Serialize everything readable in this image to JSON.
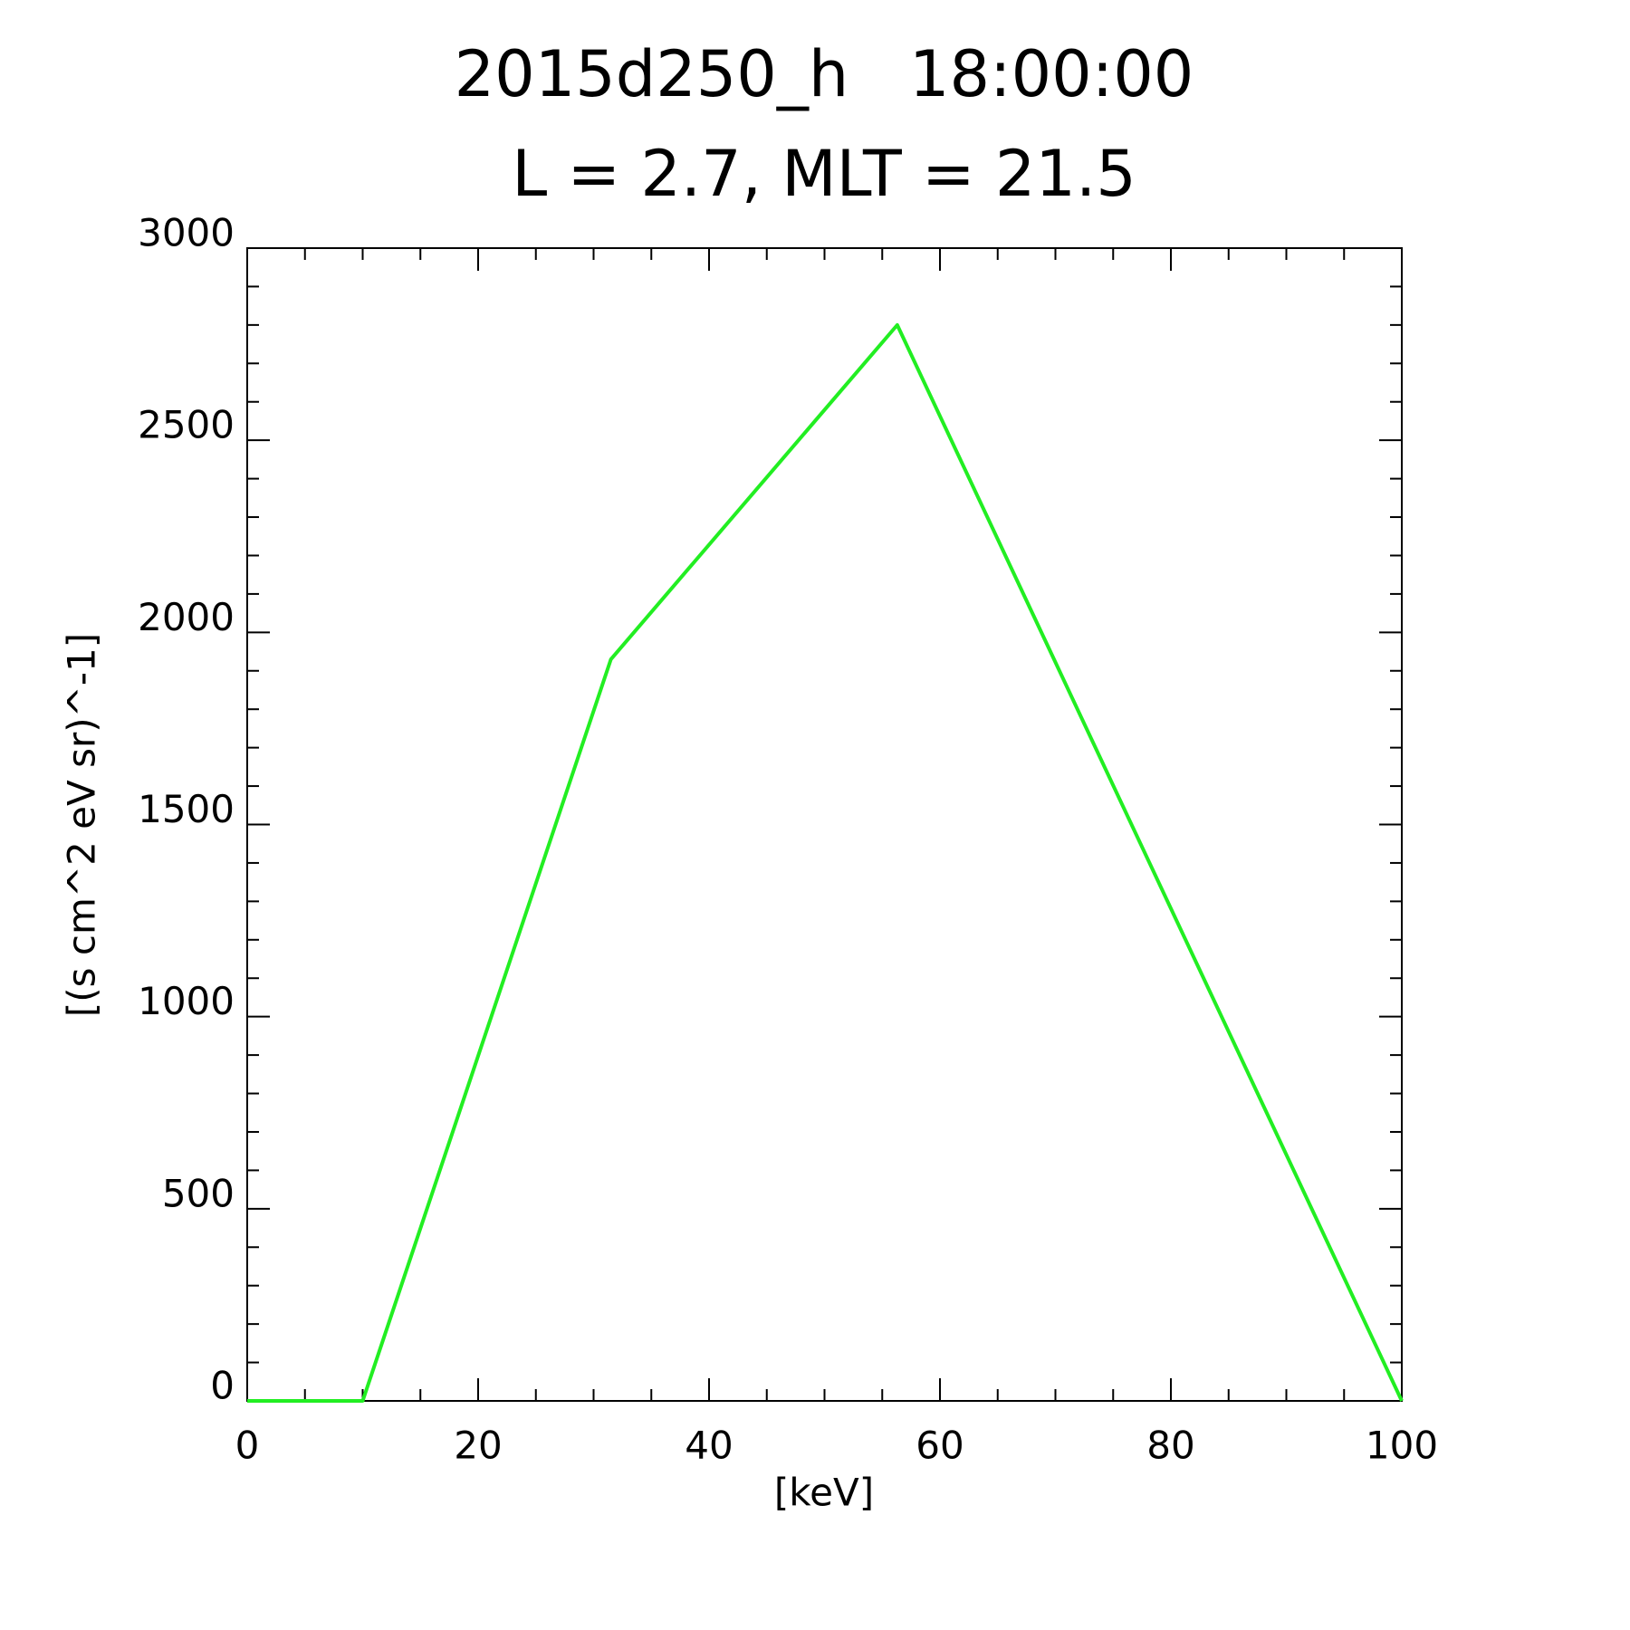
{
  "chart_data": {
    "type": "line",
    "title": "2015d250_h   18:00:00",
    "subtitle": "L = 2.7, MLT = 21.5",
    "x_label": "[keV]",
    "y_label": "[(s cm^2 eV sr)^-1]",
    "x": [
      0,
      10,
      31.5,
      56.3,
      100
    ],
    "series": [
      {
        "color": "#22ee22",
        "values": [
          0,
          0,
          1930,
          2800,
          0
        ]
      }
    ],
    "xlim": [
      0,
      100
    ],
    "xticks": [
      0,
      20,
      40,
      60,
      80,
      100
    ],
    "xminorticks": [
      5,
      10,
      15,
      25,
      30,
      35,
      45,
      50,
      55,
      65,
      70,
      75,
      85,
      90,
      95
    ],
    "ylim": [
      0,
      3000
    ],
    "yticks": [
      0,
      500,
      1000,
      1500,
      2000,
      2500,
      3000
    ],
    "yminorticks": [
      100,
      200,
      300,
      400,
      600,
      700,
      800,
      900,
      1100,
      1200,
      1300,
      1400,
      1600,
      1700,
      1800,
      1900,
      2100,
      2200,
      2300,
      2400,
      2600,
      2700,
      2800,
      2900
    ]
  }
}
